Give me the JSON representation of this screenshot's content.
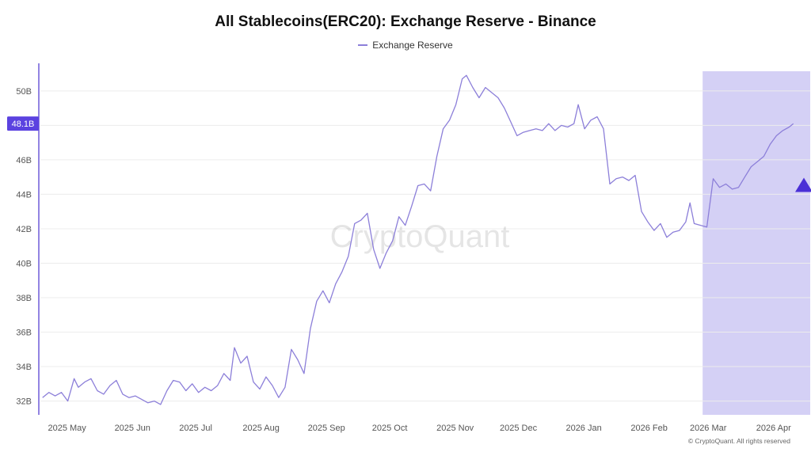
{
  "chart_data": {
    "type": "line",
    "title": "All Stablecoins(ERC20): Exchange Reserve - Binance",
    "series": [
      {
        "name": "Exchange Reserve",
        "color": "#8c7fd9",
        "points": [
          [
            "2025-04-28",
            32.2
          ],
          [
            "2025-05-01",
            32.5
          ],
          [
            "2025-05-04",
            32.3
          ],
          [
            "2025-05-07",
            32.5
          ],
          [
            "2025-05-10",
            32.0
          ],
          [
            "2025-05-13",
            33.3
          ],
          [
            "2025-05-15",
            32.8
          ],
          [
            "2025-05-18",
            33.1
          ],
          [
            "2025-05-21",
            33.3
          ],
          [
            "2025-05-24",
            32.6
          ],
          [
            "2025-05-27",
            32.4
          ],
          [
            "2025-05-30",
            32.9
          ],
          [
            "2025-06-02",
            33.2
          ],
          [
            "2025-06-05",
            32.4
          ],
          [
            "2025-06-08",
            32.2
          ],
          [
            "2025-06-11",
            32.3
          ],
          [
            "2025-06-14",
            32.1
          ],
          [
            "2025-06-17",
            31.9
          ],
          [
            "2025-06-20",
            32.0
          ],
          [
            "2025-06-23",
            31.8
          ],
          [
            "2025-06-26",
            32.6
          ],
          [
            "2025-06-29",
            33.2
          ],
          [
            "2025-07-02",
            33.1
          ],
          [
            "2025-07-05",
            32.6
          ],
          [
            "2025-07-08",
            33.0
          ],
          [
            "2025-07-11",
            32.5
          ],
          [
            "2025-07-14",
            32.8
          ],
          [
            "2025-07-17",
            32.6
          ],
          [
            "2025-07-20",
            32.9
          ],
          [
            "2025-07-23",
            33.6
          ],
          [
            "2025-07-26",
            33.2
          ],
          [
            "2025-07-28",
            35.1
          ],
          [
            "2025-07-31",
            34.2
          ],
          [
            "2025-08-03",
            34.6
          ],
          [
            "2025-08-06",
            33.1
          ],
          [
            "2025-08-09",
            32.7
          ],
          [
            "2025-08-12",
            33.4
          ],
          [
            "2025-08-15",
            32.9
          ],
          [
            "2025-08-18",
            32.2
          ],
          [
            "2025-08-21",
            32.8
          ],
          [
            "2025-08-24",
            35.0
          ],
          [
            "2025-08-27",
            34.4
          ],
          [
            "2025-08-30",
            33.6
          ],
          [
            "2025-09-02",
            36.2
          ],
          [
            "2025-09-05",
            37.8
          ],
          [
            "2025-09-08",
            38.4
          ],
          [
            "2025-09-11",
            37.7
          ],
          [
            "2025-09-14",
            38.8
          ],
          [
            "2025-09-17",
            39.5
          ],
          [
            "2025-09-20",
            40.4
          ],
          [
            "2025-09-23",
            42.3
          ],
          [
            "2025-09-26",
            42.5
          ],
          [
            "2025-09-29",
            42.9
          ],
          [
            "2025-10-02",
            40.8
          ],
          [
            "2025-10-05",
            39.7
          ],
          [
            "2025-10-08",
            40.6
          ],
          [
            "2025-10-11",
            41.3
          ],
          [
            "2025-10-14",
            42.7
          ],
          [
            "2025-10-17",
            42.2
          ],
          [
            "2025-10-20",
            43.3
          ],
          [
            "2025-10-23",
            44.5
          ],
          [
            "2025-10-26",
            44.6
          ],
          [
            "2025-10-29",
            44.2
          ],
          [
            "2025-11-01",
            46.2
          ],
          [
            "2025-11-04",
            47.8
          ],
          [
            "2025-11-07",
            48.3
          ],
          [
            "2025-11-10",
            49.2
          ],
          [
            "2025-11-13",
            50.7
          ],
          [
            "2025-11-15",
            50.9
          ],
          [
            "2025-11-18",
            50.2
          ],
          [
            "2025-11-21",
            49.6
          ],
          [
            "2025-11-24",
            50.2
          ],
          [
            "2025-11-27",
            49.9
          ],
          [
            "2025-11-30",
            49.6
          ],
          [
            "2025-12-03",
            49.0
          ],
          [
            "2025-12-06",
            48.2
          ],
          [
            "2025-12-09",
            47.4
          ],
          [
            "2025-12-12",
            47.6
          ],
          [
            "2025-12-15",
            47.7
          ],
          [
            "2025-12-18",
            47.8
          ],
          [
            "2025-12-21",
            47.7
          ],
          [
            "2025-12-24",
            48.1
          ],
          [
            "2025-12-27",
            47.7
          ],
          [
            "2025-12-30",
            48.0
          ],
          [
            "2026-01-02",
            47.9
          ],
          [
            "2026-01-05",
            48.1
          ],
          [
            "2026-01-07",
            49.2
          ],
          [
            "2026-01-10",
            47.8
          ],
          [
            "2026-01-13",
            48.3
          ],
          [
            "2026-01-16",
            48.5
          ],
          [
            "2026-01-19",
            47.8
          ],
          [
            "2026-01-22",
            44.6
          ],
          [
            "2026-01-25",
            44.9
          ],
          [
            "2026-01-28",
            45.0
          ],
          [
            "2026-01-31",
            44.8
          ],
          [
            "2026-02-03",
            45.1
          ],
          [
            "2026-02-06",
            43.0
          ],
          [
            "2026-02-09",
            42.4
          ],
          [
            "2026-02-12",
            41.9
          ],
          [
            "2026-02-15",
            42.3
          ],
          [
            "2026-02-18",
            41.5
          ],
          [
            "2026-02-21",
            41.8
          ],
          [
            "2026-02-24",
            41.9
          ],
          [
            "2026-02-27",
            42.4
          ],
          [
            "2026-03-01",
            43.5
          ],
          [
            "2026-03-03",
            42.3
          ],
          [
            "2026-03-06",
            42.2
          ],
          [
            "2026-03-09",
            42.1
          ],
          [
            "2026-03-12",
            44.9
          ],
          [
            "2026-03-15",
            44.4
          ],
          [
            "2026-03-18",
            44.6
          ],
          [
            "2026-03-21",
            44.3
          ],
          [
            "2026-03-24",
            44.4
          ],
          [
            "2026-03-27",
            45.0
          ],
          [
            "2026-03-30",
            45.6
          ],
          [
            "2026-04-02",
            45.9
          ],
          [
            "2026-04-05",
            46.2
          ],
          [
            "2026-04-08",
            46.9
          ],
          [
            "2026-04-11",
            47.4
          ],
          [
            "2026-04-14",
            47.7
          ],
          [
            "2026-04-17",
            47.9
          ],
          [
            "2026-04-19",
            48.1
          ]
        ]
      }
    ],
    "y_ticks": [
      "32B",
      "34B",
      "36B",
      "38B",
      "40B",
      "42B",
      "44B",
      "46B",
      "48B",
      "50B"
    ],
    "ylim": [
      31.2,
      51.6
    ],
    "x_ticks": [
      {
        "label": "2025 May",
        "date": "2025-05-01"
      },
      {
        "label": "2025 Jun",
        "date": "2025-06-01"
      },
      {
        "label": "2025 Jul",
        "date": "2025-07-01"
      },
      {
        "label": "2025 Aug",
        "date": "2025-08-01"
      },
      {
        "label": "2025 Sep",
        "date": "2025-09-01"
      },
      {
        "label": "2025 Oct",
        "date": "2025-10-01"
      },
      {
        "label": "2025 Nov",
        "date": "2025-11-01"
      },
      {
        "label": "2025 Dec",
        "date": "2025-12-01"
      },
      {
        "label": "2026 Jan",
        "date": "2026-01-01"
      },
      {
        "label": "2026 Feb",
        "date": "2026-02-01"
      },
      {
        "label": "2026 Mar",
        "date": "2026-03-01"
      },
      {
        "label": "2026 Apr",
        "date": "2026-04-01"
      }
    ],
    "xlim": [
      "2025-04-27",
      "2026-04-27"
    ],
    "current_value": {
      "label": "48.1B",
      "value": 48.1
    },
    "highlight_region": {
      "start": "2026-03-07",
      "end": "2026-04-27",
      "color": "#d4d0f5"
    },
    "marker": {
      "shape": "triangle-up",
      "date": "2026-04-24",
      "value": 44.5,
      "color": "#4a2fd6"
    },
    "grid": "horizontal",
    "legend_position": "top-center"
  },
  "legend": {
    "label": "Exchange Reserve",
    "color": "#8c7fd9"
  },
  "watermark": "CryptoQuant",
  "copyright": "© CryptoQuant. All rights reserved",
  "colors": {
    "accent": "#5b42e0",
    "line": "#8c7fd9",
    "band": "#d4d0f5",
    "grid": "#ececec"
  }
}
